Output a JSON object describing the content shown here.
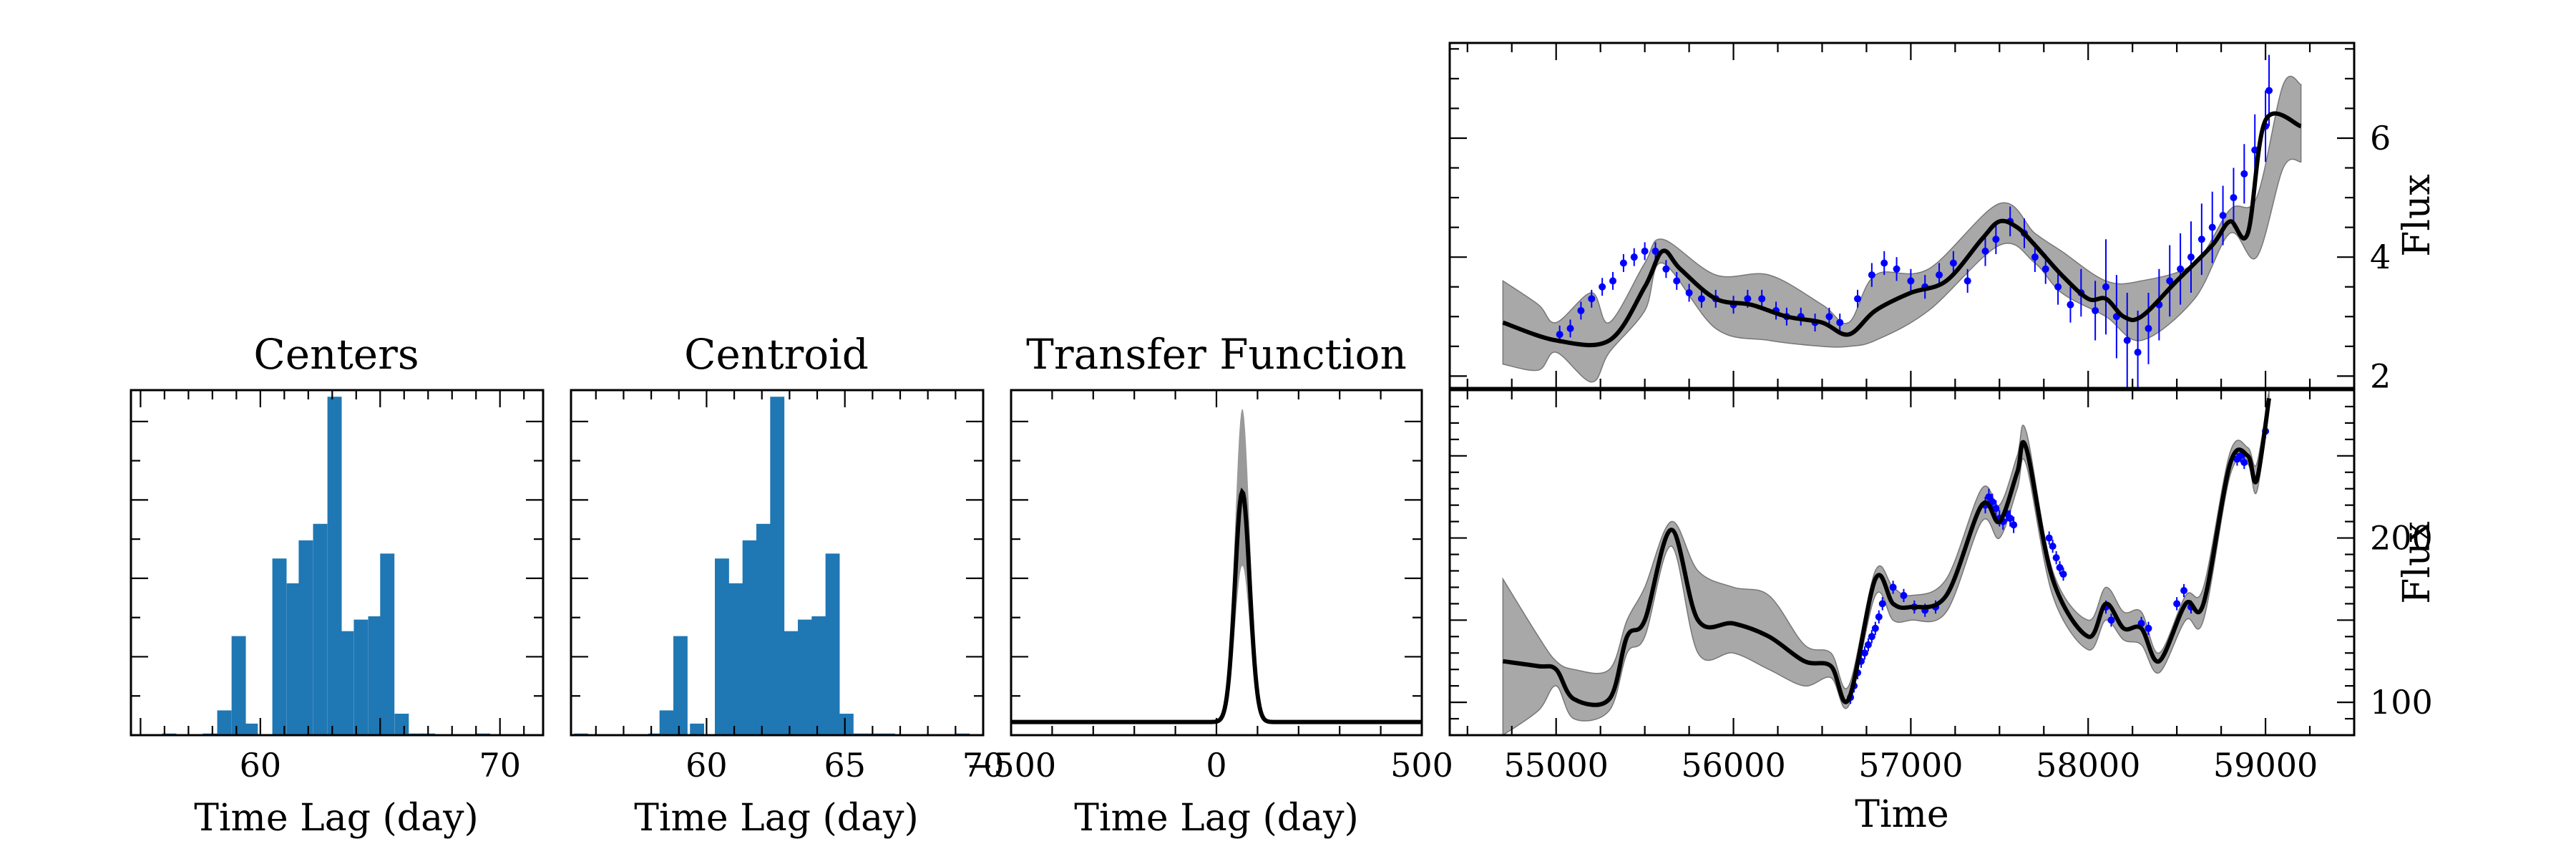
{
  "chart_data": [
    {
      "type": "bar",
      "title": "Centers",
      "xlabel": "Time Lag (day)",
      "ylabel": "",
      "xlim": [
        54.6,
        71.8
      ],
      "xticks": [
        60,
        70
      ],
      "tick_labels": [
        "60",
        "70"
      ],
      "bar_width": 0.58,
      "color": "#1f77b4",
      "bins_left": [
        55.9,
        57.6,
        58.2,
        58.8,
        59.3,
        60.5,
        61.1,
        61.6,
        62.2,
        62.8,
        63.3,
        63.9,
        64.5,
        65.0,
        65.6,
        66.2,
        66.7,
        69.0
      ],
      "values": [
        1,
        1,
        15,
        60,
        7,
        107,
        92,
        118,
        128,
        205,
        63,
        70,
        72,
        110,
        13,
        1,
        1,
        1
      ],
      "ylim": [
        0,
        209
      ]
    },
    {
      "type": "bar",
      "title": "Centroid",
      "xlabel": "Time Lag (day)",
      "ylabel": "",
      "xlim": [
        55.1,
        70.0
      ],
      "xticks": [
        60,
        65,
        70
      ],
      "tick_labels": [
        "60",
        "65",
        "70"
      ],
      "bar_width": 0.5,
      "color": "#1f77b4",
      "bins_left": [
        55.2,
        57.9,
        58.3,
        58.8,
        59.4,
        60.3,
        60.8,
        61.3,
        61.8,
        62.3,
        62.8,
        63.3,
        63.8,
        64.3,
        64.8,
        65.3,
        65.8,
        66.3,
        69.0
      ],
      "values": [
        1,
        1,
        15,
        60,
        7,
        107,
        92,
        118,
        128,
        205,
        63,
        70,
        72,
        110,
        13,
        1,
        1,
        1,
        1
      ],
      "ylim": [
        0,
        209
      ]
    },
    {
      "type": "line",
      "title": "Transfer Function",
      "xlabel": "Time Lag (day)",
      "ylabel": "",
      "xlim": [
        -500,
        500
      ],
      "xticks": [
        -500,
        0,
        500
      ],
      "tick_labels": [
        "−500",
        "0",
        "500"
      ],
      "ylim": [
        0,
        1.05
      ],
      "baseline": 0.04,
      "peak_center": 63,
      "peak_sigma": 18,
      "peak_mean": 0.7,
      "peak_band_upper": 0.95,
      "peak_band_lower": 0.48
    },
    {
      "type": "line",
      "title": "",
      "xlabel": "",
      "ylabel": "Flux",
      "xlim": [
        54400,
        59500
      ],
      "ylim": [
        1.8,
        7.6
      ],
      "yticks": [
        2,
        4,
        6
      ],
      "tick_labels": [
        "2",
        "4",
        "6"
      ],
      "model_x": [
        54700,
        55000,
        55300,
        55500,
        55600,
        55700,
        55900,
        56100,
        56300,
        56500,
        56650,
        56800,
        57000,
        57200,
        57400,
        57500,
        57600,
        57700,
        57850,
        58000,
        58100,
        58200,
        58300,
        58500,
        58700,
        58800,
        58900,
        59000,
        59200
      ],
      "model_y": [
        2.9,
        2.6,
        2.6,
        3.5,
        4.1,
        3.8,
        3.3,
        3.2,
        3.0,
        2.9,
        2.7,
        3.1,
        3.4,
        3.6,
        4.3,
        4.6,
        4.5,
        4.2,
        3.7,
        3.3,
        3.3,
        3.0,
        3.0,
        3.6,
        4.2,
        4.6,
        4.4,
        6.3,
        6.2
      ],
      "band_x": [
        54700,
        54900,
        55000,
        55200,
        55300,
        55500,
        55600,
        55900,
        56200,
        56500,
        56650,
        56800,
        57100,
        57500,
        57700,
        57850,
        58100,
        58300,
        58600,
        58800,
        58950,
        59100,
        59200
      ],
      "band_upper": [
        3.6,
        3.2,
        2.9,
        3.4,
        2.9,
        3.9,
        4.3,
        3.7,
        3.7,
        3.2,
        2.9,
        3.7,
        3.8,
        4.9,
        4.4,
        4.1,
        3.6,
        3.6,
        3.9,
        4.8,
        5.0,
        6.9,
        6.9
      ],
      "band_lower": [
        2.2,
        2.1,
        2.4,
        1.9,
        2.4,
        3.1,
        3.9,
        2.8,
        2.6,
        2.5,
        2.5,
        2.6,
        3.1,
        4.2,
        3.9,
        3.4,
        3.0,
        2.6,
        3.3,
        4.4,
        4.0,
        5.5,
        5.6
      ],
      "points_x": [
        55020,
        55080,
        55140,
        55200,
        55260,
        55320,
        55380,
        55440,
        55500,
        55560,
        55620,
        55680,
        55750,
        55820,
        55900,
        56000,
        56080,
        56160,
        56240,
        56300,
        56380,
        56460,
        56540,
        56600,
        56700,
        56780,
        56850,
        56920,
        57000,
        57080,
        57160,
        57240,
        57320,
        57420,
        57480,
        57560,
        57640,
        57700,
        57760,
        57830,
        57900,
        57960,
        58040,
        58100,
        58160,
        58220,
        58280,
        58340,
        58400,
        58460,
        58520,
        58580,
        58640,
        58700,
        58760,
        58820,
        58880,
        58940,
        59000,
        59020
      ],
      "points_y": [
        2.7,
        2.8,
        3.1,
        3.3,
        3.5,
        3.6,
        3.9,
        4.0,
        4.1,
        4.1,
        3.8,
        3.6,
        3.4,
        3.3,
        3.3,
        3.2,
        3.3,
        3.3,
        3.1,
        3.0,
        3.0,
        2.9,
        3.0,
        2.9,
        3.3,
        3.7,
        3.9,
        3.8,
        3.6,
        3.5,
        3.7,
        3.9,
        3.6,
        4.1,
        4.3,
        4.6,
        4.4,
        4.0,
        3.8,
        3.5,
        3.2,
        3.4,
        3.1,
        3.5,
        3.0,
        2.6,
        2.4,
        2.8,
        3.2,
        3.6,
        3.8,
        4.0,
        4.3,
        4.5,
        4.7,
        5.0,
        5.4,
        5.8,
        6.2,
        6.8
      ],
      "point_err": [
        0.15,
        0.15,
        0.15,
        0.15,
        0.15,
        0.15,
        0.15,
        0.15,
        0.15,
        0.15,
        0.15,
        0.15,
        0.15,
        0.15,
        0.15,
        0.15,
        0.15,
        0.15,
        0.15,
        0.15,
        0.15,
        0.15,
        0.15,
        0.15,
        0.15,
        0.2,
        0.2,
        0.2,
        0.2,
        0.2,
        0.2,
        0.2,
        0.2,
        0.25,
        0.25,
        0.25,
        0.25,
        0.25,
        0.25,
        0.3,
        0.3,
        0.4,
        0.5,
        0.8,
        0.7,
        0.8,
        0.7,
        0.6,
        0.6,
        0.6,
        0.6,
        0.6,
        0.6,
        0.6,
        0.5,
        0.5,
        0.5,
        0.6,
        0.6,
        0.6
      ],
      "model_color": "#000000",
      "band_color": "#999999",
      "point_color": "#0000ff"
    },
    {
      "type": "line",
      "title": "",
      "xlabel": "Time",
      "ylabel": "Flux",
      "xlim": [
        54400,
        59500
      ],
      "ylim": [
        80,
        290
      ],
      "xticks": [
        55000,
        56000,
        57000,
        58000,
        59000
      ],
      "tick_labels_x": [
        "55000",
        "56000",
        "57000",
        "58000",
        "59000"
      ],
      "yticks": [
        100,
        150,
        200
      ],
      "tick_labels": [
        "100",
        "",
        "200"
      ],
      "model_x": [
        54700,
        54900,
        55000,
        55100,
        55300,
        55400,
        55500,
        55650,
        55800,
        56000,
        56200,
        56400,
        56550,
        56650,
        56800,
        56900,
        57000,
        57200,
        57400,
        57500,
        57600,
        57650,
        57800,
        58000,
        58100,
        58200,
        58300,
        58400,
        58550,
        58650,
        58800,
        58900,
        58950,
        59020
      ],
      "model_y": [
        125,
        122,
        120,
        102,
        102,
        140,
        150,
        205,
        150,
        148,
        140,
        125,
        122,
        102,
        175,
        160,
        158,
        165,
        220,
        210,
        240,
        255,
        175,
        140,
        160,
        145,
        145,
        125,
        160,
        160,
        245,
        250,
        235,
        285
      ],
      "band_x": [
        54700,
        54900,
        55000,
        55100,
        55300,
        55400,
        55500,
        55650,
        55800,
        56000,
        56200,
        56400,
        56550,
        56650,
        56800,
        56900,
        57000,
        57200,
        57400,
        57500,
        57600,
        57650,
        57800,
        58000,
        58100,
        58200,
        58300,
        58400,
        58550,
        58650,
        58800,
        58900,
        58950,
        59020
      ],
      "band_upper": [
        175,
        140,
        125,
        120,
        120,
        150,
        170,
        210,
        180,
        170,
        165,
        135,
        130,
        110,
        180,
        170,
        165,
        175,
        230,
        220,
        250,
        265,
        180,
        150,
        170,
        155,
        155,
        130,
        165,
        170,
        252,
        255,
        245,
        290
      ],
      "band_lower": [
        80,
        95,
        110,
        90,
        95,
        130,
        140,
        195,
        130,
        130,
        120,
        110,
        115,
        98,
        165,
        150,
        150,
        155,
        210,
        200,
        230,
        245,
        165,
        132,
        150,
        138,
        135,
        118,
        150,
        150,
        238,
        245,
        228,
        280
      ],
      "points_x": [
        56660,
        56680,
        56700,
        56720,
        56740,
        56760,
        56780,
        56800,
        56820,
        56840,
        56900,
        56960,
        57020,
        57080,
        57140,
        57420,
        57440,
        57460,
        57480,
        57500,
        57520,
        57540,
        57560,
        57580,
        57780,
        57800,
        57820,
        57840,
        57860,
        58100,
        58130,
        58300,
        58340,
        58500,
        58540,
        58580,
        58840,
        58860,
        58880,
        59000
      ],
      "points_y": [
        103,
        110,
        118,
        125,
        130,
        135,
        140,
        145,
        152,
        160,
        170,
        165,
        158,
        156,
        158,
        220,
        225,
        222,
        218,
        212,
        210,
        215,
        212,
        208,
        200,
        195,
        188,
        182,
        178,
        158,
        150,
        148,
        145,
        160,
        168,
        158,
        248,
        250,
        246,
        265
      ],
      "point_err": [
        4,
        4,
        4,
        4,
        4,
        4,
        4,
        4,
        4,
        4,
        4,
        4,
        4,
        4,
        4,
        5,
        5,
        5,
        5,
        5,
        5,
        5,
        5,
        5,
        4,
        4,
        4,
        4,
        4,
        4,
        4,
        4,
        4,
        4,
        4,
        4,
        4,
        4,
        4,
        4
      ],
      "model_color": "#000000",
      "band_color": "#999999",
      "point_color": "#0000ff"
    }
  ]
}
